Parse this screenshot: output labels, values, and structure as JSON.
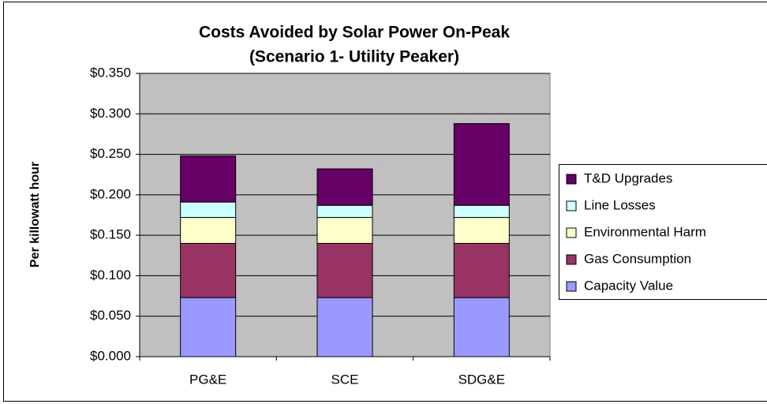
{
  "chart_data": {
    "type": "stacked_bar",
    "title": "Costs Avoided by Solar Power On-Peak",
    "subtitle": "(Scenario 1- Utility Peaker)",
    "y_label": "Per killowatt hour",
    "categories": [
      "PG&E",
      "SCE",
      "SDG&E"
    ],
    "series": [
      {
        "name": "Capacity Value",
        "color": "#9999ff",
        "values": [
          0.073,
          0.073,
          0.073
        ]
      },
      {
        "name": "Gas Consumption",
        "color": "#993366",
        "values": [
          0.067,
          0.067,
          0.067
        ]
      },
      {
        "name": "Environmental Harm",
        "color": "#ffffcc",
        "values": [
          0.032,
          0.032,
          0.032
        ]
      },
      {
        "name": "Line Losses",
        "color": "#ccffff",
        "values": [
          0.019,
          0.015,
          0.015
        ]
      },
      {
        "name": "T&D Upgrades",
        "color": "#660066",
        "values": [
          0.057,
          0.045,
          0.101
        ]
      }
    ],
    "ylim": [
      0,
      0.35
    ],
    "yticks": [
      {
        "value": 0,
        "label": "$0.000"
      },
      {
        "value": 0.05,
        "label": "$0.050"
      },
      {
        "value": 0.1,
        "label": "$0.100"
      },
      {
        "value": 0.15,
        "label": "$0.150"
      },
      {
        "value": 0.2,
        "label": "$0.200"
      },
      {
        "value": 0.25,
        "label": "$0.250"
      },
      {
        "value": 0.3,
        "label": "$0.300"
      },
      {
        "value": 0.35,
        "label": "$0.350"
      }
    ],
    "grid": true,
    "plot_background": "#c0c0c0",
    "legend": "right"
  }
}
